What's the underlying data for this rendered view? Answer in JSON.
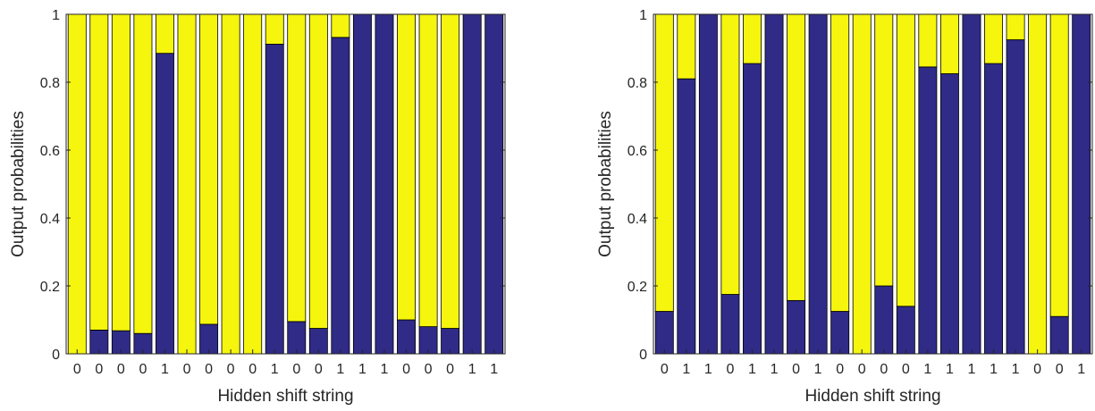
{
  "colors": {
    "blue": "#2f2b87",
    "yellow": "#f5f50e",
    "axis": "#262626",
    "bar_edge": "#000000"
  },
  "chart_data": [
    {
      "type": "bar",
      "stacked": true,
      "xlabel": "Hidden shift string",
      "ylabel": "Output probabilities",
      "ylim": [
        0,
        1
      ],
      "yticks": [
        "0",
        "0.2",
        "0.4",
        "0.6",
        "0.8",
        "1"
      ],
      "categories": [
        "0",
        "0",
        "0",
        "0",
        "1",
        "0",
        "0",
        "0",
        "0",
        "1",
        "0",
        "0",
        "1",
        "1",
        "1",
        "0",
        "0",
        "0",
        "1",
        "1"
      ],
      "series": [
        {
          "color": "blue",
          "values": [
            0,
            0.07,
            0.068,
            0.06,
            0.885,
            0,
            0.087,
            0,
            0,
            0.912,
            0.095,
            0.075,
            0.932,
            1,
            1,
            0.1,
            0.08,
            0.075,
            1,
            1
          ]
        },
        {
          "color": "yellow",
          "values": [
            1,
            0.93,
            0.932,
            0.94,
            0.115,
            1,
            0.913,
            1,
            1,
            0.088,
            0.905,
            0.925,
            0.068,
            0,
            0,
            0.9,
            0.92,
            0.925,
            0,
            0
          ]
        }
      ],
      "grid": false,
      "legend": "none"
    },
    {
      "type": "bar",
      "stacked": true,
      "xlabel": "Hidden shift string",
      "ylabel": "Output probabilities",
      "ylim": [
        0,
        1
      ],
      "yticks": [
        "0",
        "0.2",
        "0.4",
        "0.6",
        "0.8",
        "1"
      ],
      "categories": [
        "0",
        "1",
        "1",
        "0",
        "1",
        "1",
        "0",
        "1",
        "0",
        "0",
        "0",
        "0",
        "1",
        "1",
        "1",
        "1",
        "1",
        "0",
        "0",
        "1"
      ],
      "series": [
        {
          "color": "blue",
          "values": [
            0.125,
            0.81,
            1,
            0.175,
            0.855,
            1,
            0.157,
            1,
            0.125,
            0,
            0.2,
            0.14,
            0.845,
            0.825,
            1,
            0.855,
            0.925,
            0,
            0.11,
            1
          ]
        },
        {
          "color": "yellow",
          "values": [
            0.875,
            0.19,
            0,
            0.825,
            0.145,
            0,
            0.843,
            0,
            0.875,
            1,
            0.8,
            0.86,
            0.155,
            0.175,
            0,
            0.145,
            0.075,
            1,
            0.89,
            0
          ]
        }
      ],
      "grid": false,
      "legend": "none"
    }
  ]
}
